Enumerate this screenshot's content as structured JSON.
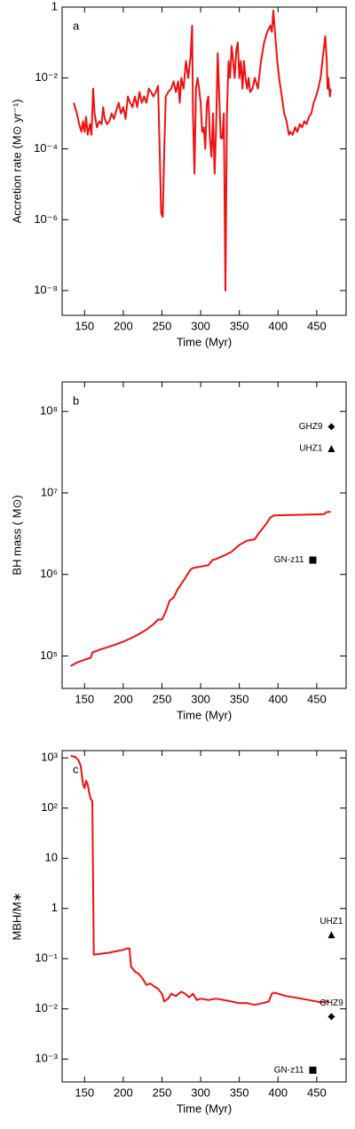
{
  "chart_data": [
    {
      "type": "line",
      "panel_label": "a",
      "xlabel": "Time (Myr)",
      "ylabel": "Accretion rate (M⊙ yr⁻¹)",
      "color": "#ee1111",
      "log_y": true,
      "xlim": [
        121,
        488
      ],
      "ylim": [
        2e-09,
        1
      ],
      "xticks": [
        150,
        200,
        250,
        300,
        350,
        400,
        450
      ],
      "yticks": [
        1,
        {
          "value": 0.01,
          "label": "10⁻²"
        },
        {
          "value": 0.0001,
          "label": "10⁻⁴"
        },
        {
          "value": 1e-06,
          "label": "10⁻⁶"
        },
        {
          "value": 1e-08,
          "label": "10⁻⁸"
        }
      ],
      "x": [
        136,
        140,
        143,
        146,
        148,
        150,
        152,
        154,
        157,
        159,
        161,
        163,
        166,
        169,
        172,
        174,
        176,
        179,
        182,
        185,
        188,
        191,
        194,
        197,
        200,
        203,
        206,
        209,
        212,
        215,
        218,
        221,
        224,
        227,
        230,
        233,
        236,
        239,
        242,
        245,
        247,
        249,
        251,
        253,
        255,
        258,
        262,
        265,
        268,
        271,
        273,
        275,
        278,
        281,
        284,
        287,
        289,
        290,
        292,
        294,
        296,
        298,
        300,
        302,
        304,
        306,
        308,
        310,
        312,
        314,
        316,
        318,
        320,
        322,
        324,
        326,
        328,
        330,
        332,
        334,
        336,
        338,
        340,
        342,
        344,
        346,
        348,
        350,
        352,
        354,
        356,
        358,
        360,
        362,
        364,
        367,
        370,
        374,
        378,
        382,
        386,
        390,
        392,
        394,
        396,
        399,
        402,
        405,
        408,
        411,
        414,
        416,
        419,
        422,
        425,
        428,
        431,
        434,
        437,
        440,
        443,
        446,
        449,
        452,
        455,
        458,
        461,
        463,
        464,
        465,
        467,
        468
      ],
      "values": [
        0.002,
        0.001,
        0.0005,
        0.0003,
        0.0006,
        0.0003,
        0.0008,
        0.00025,
        0.0005,
        0.00025,
        0.005,
        0.001,
        0.0004,
        0.0006,
        0.0005,
        0.0015,
        0.0007,
        0.0005,
        0.0006,
        0.001,
        0.0007,
        0.0012,
        0.002,
        0.001,
        0.0015,
        0.0007,
        0.003,
        0.002,
        0.0015,
        0.003,
        0.0015,
        0.004,
        0.002,
        0.003,
        0.002,
        0.005,
        0.004,
        0.003,
        0.004,
        0.006,
        0.0001,
        1.5e-06,
        1.2e-06,
        0.0001,
        0.003,
        0.004,
        0.005,
        0.008,
        0.004,
        0.008,
        0.002,
        0.01,
        0.005,
        0.03,
        0.01,
        0.04,
        0.3,
        0.001,
        2e-05,
        0.005,
        0.01,
        0.005,
        0.002,
        0.0003,
        0.0004,
        0.0001,
        0.002,
        0.003,
        0.0002,
        6e-05,
        0.001,
        2e-05,
        0.0004,
        0.05,
        0.003,
        0.0002,
        0.0002,
        0.001,
        1e-08,
        0.001,
        0.03,
        0.01,
        0.08,
        0.03,
        0.01,
        0.06,
        0.1,
        0.01,
        0.03,
        0.005,
        0.03,
        0.01,
        0.005,
        0.01,
        0.004,
        0.005,
        0.01,
        0.005,
        0.03,
        0.1,
        0.2,
        0.3,
        0.2,
        0.8,
        0.2,
        0.03,
        0.008,
        0.003,
        0.001,
        0.0006,
        0.00025,
        0.0003,
        0.00025,
        0.0004,
        0.0003,
        0.0005,
        0.0004,
        0.0006,
        0.0005,
        0.0008,
        0.001,
        0.002,
        0.003,
        0.005,
        0.01,
        0.04,
        0.15,
        0.03,
        0.005,
        0.01,
        0.003,
        0.005
      ]
    },
    {
      "type": "line",
      "panel_label": "b",
      "xlabel": "Time (Myr)",
      "ylabel": "BH mass ( M⊙)",
      "color": "#ee1111",
      "log_y": true,
      "xlim": [
        121,
        488
      ],
      "ylim": [
        40000,
        230000000
      ],
      "xticks": [
        150,
        200,
        250,
        300,
        350,
        400,
        450
      ],
      "yticks": [
        {
          "value": 100000,
          "label": "10⁵"
        },
        {
          "value": 1000000,
          "label": "10⁶"
        },
        {
          "value": 10000000,
          "label": "10⁷"
        },
        {
          "value": 100000000,
          "label": "10⁸"
        }
      ],
      "x": [
        132,
        140,
        150,
        158,
        160,
        170,
        180,
        190,
        200,
        210,
        220,
        230,
        240,
        245,
        250,
        255,
        260,
        265,
        270,
        280,
        287,
        290,
        300,
        310,
        315,
        320,
        330,
        340,
        345,
        350,
        360,
        370,
        375,
        385,
        390,
        395,
        410,
        430,
        450,
        460,
        462,
        468
      ],
      "values": [
        75000,
        83000,
        90000,
        95000,
        110000,
        120000,
        128000,
        138000,
        150000,
        165000,
        185000,
        210000,
        250000,
        280000,
        280000,
        350000,
        480000,
        520000,
        650000,
        900000,
        1150000,
        1200000,
        1250000,
        1300000,
        1500000,
        1550000,
        1700000,
        1900000,
        2100000,
        2300000,
        2600000,
        2700000,
        3200000,
        4200000,
        5000000,
        5300000,
        5350000,
        5400000,
        5450000,
        5500000,
        5800000,
        5900000
      ],
      "points": [
        {
          "label": "GHZ9",
          "x": 469,
          "y": 65000000,
          "marker": "diamond",
          "label_side": "left"
        },
        {
          "label": "UHZ1",
          "x": 469,
          "y": 35000000,
          "marker": "triangle",
          "label_side": "left"
        },
        {
          "label": "GN-z11",
          "x": 445,
          "y": 1500000,
          "marker": "square",
          "label_side": "left"
        }
      ]
    },
    {
      "type": "line",
      "panel_label": "c",
      "xlabel": "Time (Myr)",
      "ylabel": "MBH/M∗",
      "color": "#ee1111",
      "log_y": true,
      "xlim": [
        121,
        488
      ],
      "ylim": [
        0.00035,
        1400
      ],
      "xticks": [
        150,
        200,
        250,
        300,
        350,
        400,
        450
      ],
      "yticks": [
        {
          "value": 1000,
          "label": "10³"
        },
        {
          "value": 100,
          "label": "10²"
        },
        10,
        1,
        {
          "value": 0.1,
          "label": "10⁻¹"
        },
        {
          "value": 0.01,
          "label": "10⁻²"
        },
        {
          "value": 0.001,
          "label": "10⁻³"
        }
      ],
      "x": [
        132,
        138,
        142,
        145,
        148,
        150,
        152,
        154,
        156,
        158,
        160,
        162,
        170,
        180,
        190,
        200,
        205,
        208,
        210,
        215,
        220,
        225,
        230,
        235,
        240,
        245,
        250,
        253,
        258,
        262,
        268,
        275,
        280,
        285,
        290,
        295,
        300,
        310,
        320,
        330,
        340,
        350,
        360,
        370,
        380,
        388,
        392,
        395,
        400,
        410,
        420,
        430,
        440,
        450,
        455,
        460,
        466
      ],
      "values": [
        1100,
        1050,
        900,
        700,
        300,
        250,
        350,
        300,
        200,
        150,
        140,
        0.12,
        0.125,
        0.13,
        0.14,
        0.15,
        0.16,
        0.16,
        0.07,
        0.055,
        0.05,
        0.04,
        0.03,
        0.032,
        0.028,
        0.025,
        0.02,
        0.014,
        0.016,
        0.02,
        0.018,
        0.022,
        0.02,
        0.017,
        0.02,
        0.015,
        0.016,
        0.015,
        0.016,
        0.015,
        0.014,
        0.013,
        0.013,
        0.012,
        0.013,
        0.014,
        0.02,
        0.021,
        0.02,
        0.018,
        0.017,
        0.016,
        0.015,
        0.014,
        0.0135,
        0.014,
        0.0142
      ],
      "points": [
        {
          "label": "UHZ1",
          "x": 469,
          "y": 0.3,
          "marker": "triangle",
          "label_side": "above"
        },
        {
          "label": "GHZ9",
          "x": 469,
          "y": 0.007,
          "marker": "diamond",
          "label_side": "above"
        },
        {
          "label": "GN-z11",
          "x": 445,
          "y": 0.0006,
          "marker": "square",
          "label_side": "left"
        }
      ]
    }
  ]
}
